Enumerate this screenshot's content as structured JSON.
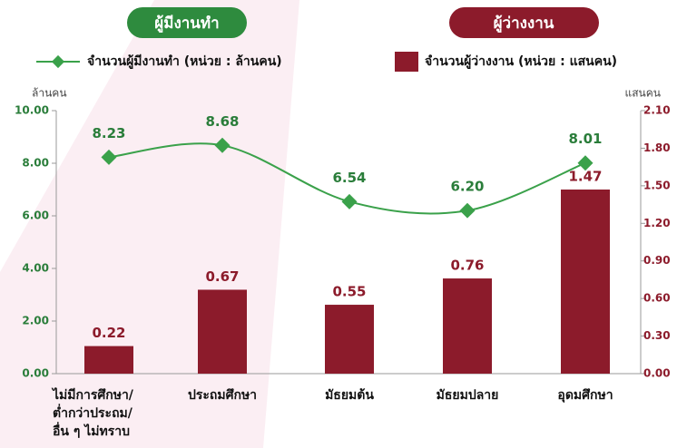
{
  "chart_data": {
    "type": "bar-line",
    "annotations": [
      "ผู้มีงานทำ",
      "ผู้ว่างงาน"
    ],
    "ylabel": "ล้านคน",
    "y2label": "แสนคน",
    "categories": [
      "ไม่มีการศึกษา/\nต่ำกว่าประถม/\nอื่น ๆ ไม่ทราบ",
      "ประถมศึกษา",
      "มัธยมต้น",
      "มัธยมปลาย",
      "อุดมศึกษา"
    ],
    "series": [
      {
        "name": "จำนวนผู้มีงานทำ (หน่วย : ล้านคน)",
        "type": "line",
        "axis": "y",
        "color": "#3aa14a",
        "values": [
          8.23,
          8.68,
          6.54,
          6.2,
          8.01
        ],
        "value_labels": [
          "8.23",
          "8.68",
          "6.54",
          "6.20",
          "8.01"
        ]
      },
      {
        "name": "จำนวนผู้ว่างงาน (หน่วย : แสนคน)",
        "type": "bar",
        "axis": "y2",
        "color": "#8c1b2b",
        "values": [
          0.22,
          0.67,
          0.55,
          0.76,
          1.47
        ],
        "value_labels": [
          "0.22",
          "0.67",
          "0.55",
          "0.76",
          "1.47"
        ]
      }
    ],
    "ylim": [
      0,
      10
    ],
    "yticks": [
      {
        "value": 0,
        "label": "0.00"
      },
      {
        "value": 2,
        "label": "2.00"
      },
      {
        "value": 4,
        "label": "4.00"
      },
      {
        "value": 6,
        "label": "6.00"
      },
      {
        "value": 8,
        "label": "8.00"
      },
      {
        "value": 10,
        "label": "10.00"
      }
    ],
    "y2lim": [
      0,
      2.1
    ],
    "y2ticks": [
      {
        "value": 0,
        "label": "0.00"
      },
      {
        "value": 0.3,
        "label": "0.30"
      },
      {
        "value": 0.6,
        "label": "0.60"
      },
      {
        "value": 0.9,
        "label": "0.90"
      },
      {
        "value": 1.2,
        "label": "1.20"
      },
      {
        "value": 1.5,
        "label": "1.50"
      },
      {
        "value": 1.8,
        "label": "1.80"
      },
      {
        "value": 2.1,
        "label": "2.10"
      }
    ]
  }
}
